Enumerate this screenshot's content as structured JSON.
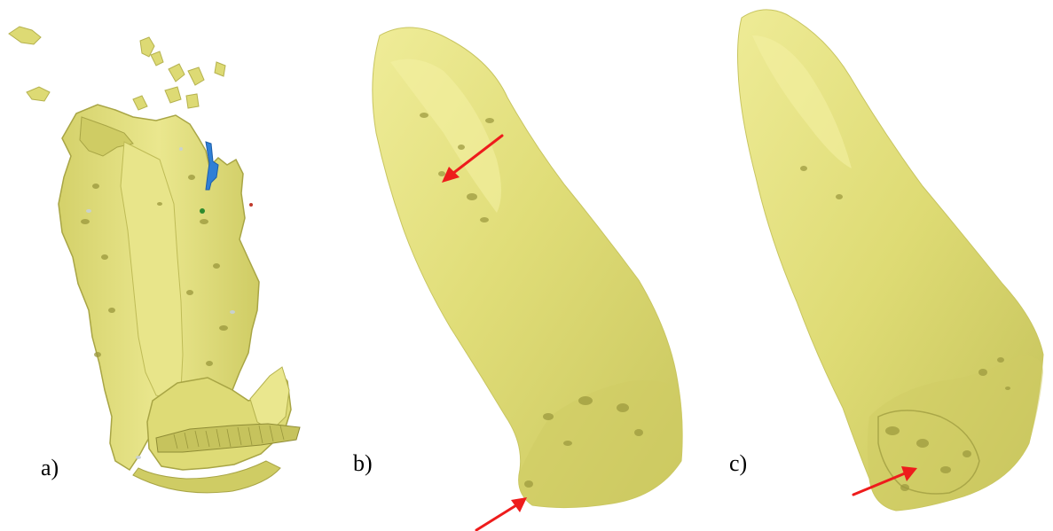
{
  "panels": [
    {
      "label": "a)"
    },
    {
      "label": "b)"
    },
    {
      "label": "c)"
    }
  ],
  "colors": {
    "surface": "#e3e07c",
    "surface_light": "#f1ee9c",
    "surface_shadow": "#b5b24e",
    "surface_dark": "#8f8c35",
    "arrow": "#ee1c1c",
    "marker_blue": "#2f7fd6",
    "marker_green": "#2e8b2e"
  }
}
